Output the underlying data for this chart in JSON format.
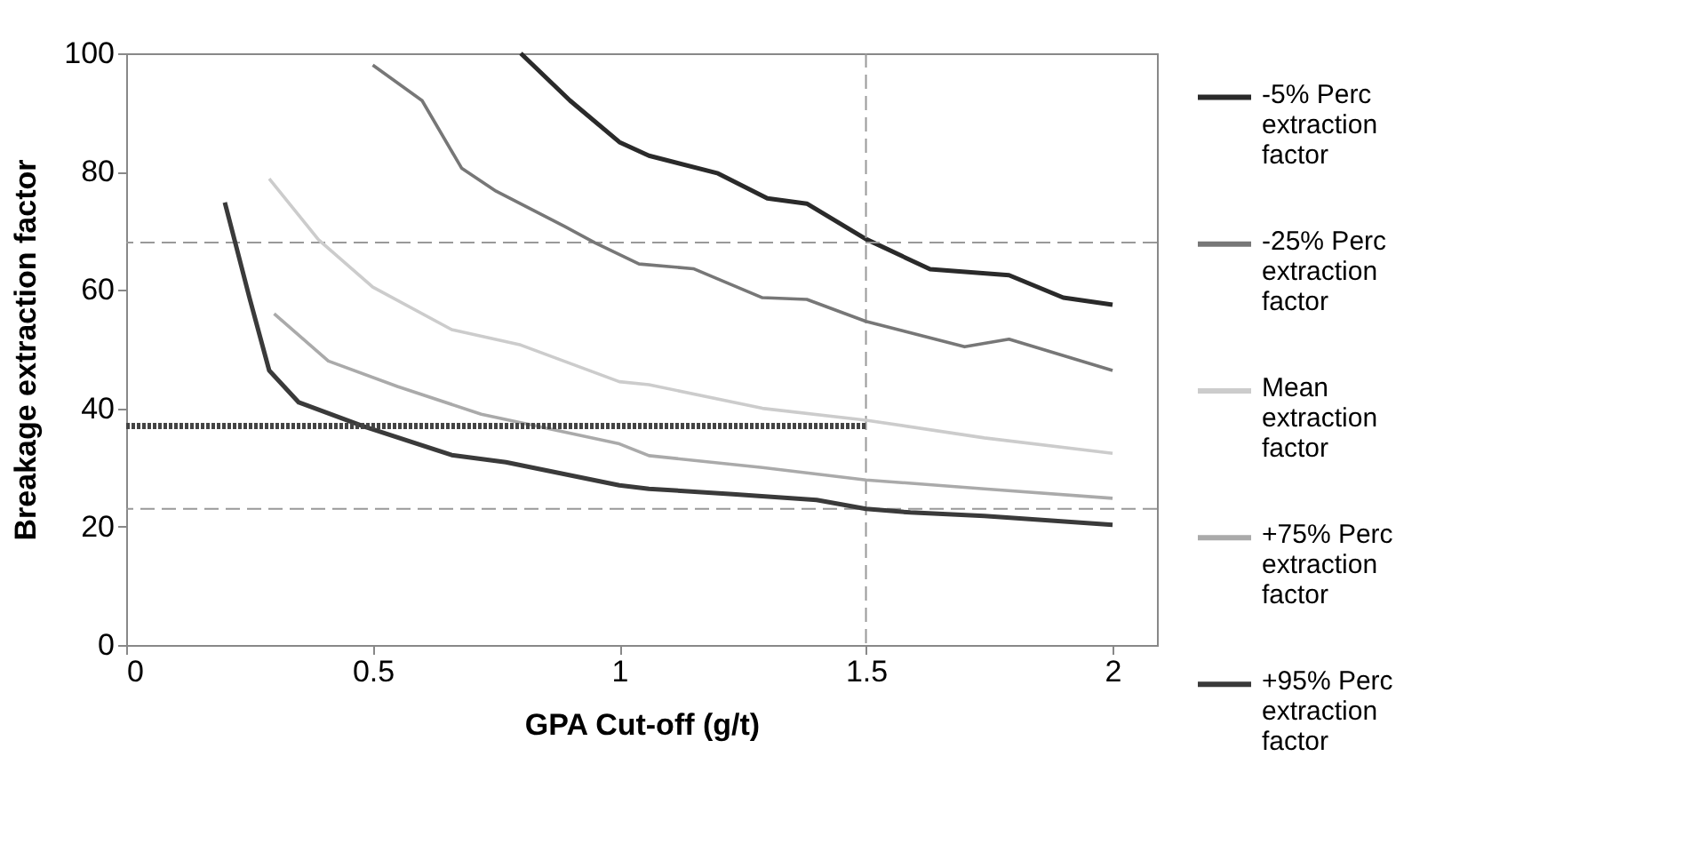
{
  "chart_data": {
    "type": "line",
    "xlabel": "GPA Cut-off (g/t)",
    "ylabel": "Breakage extraction factor",
    "xlim": [
      0,
      2.09
    ],
    "xticks": [
      0,
      0.5,
      1,
      1.5,
      2
    ],
    "ylim": [
      0,
      100
    ],
    "yticks": [
      0,
      20,
      40,
      60,
      80,
      100
    ],
    "grid": false,
    "legend": "right",
    "marker": "none",
    "series": [
      {
        "name": "-5% Perc extraction factor",
        "color": "#2a2a2a",
        "x": [
          0.8,
          0.9,
          1.0,
          1.06,
          1.2,
          1.3,
          1.38,
          1.5,
          1.63,
          1.79,
          1.9,
          2.0
        ],
        "values": [
          100,
          92,
          85,
          82.7,
          79.7,
          75.5,
          74.6,
          68.6,
          63.5,
          62.5,
          58.7,
          57.5
        ]
      },
      {
        "name": "-25% Perc extraction factor",
        "color": "#777777",
        "x": [
          0.5,
          0.6,
          0.68,
          0.75,
          0.89,
          0.95,
          1.04,
          1.15,
          1.29,
          1.38,
          1.5,
          1.7,
          1.79,
          2.0
        ],
        "values": [
          98,
          92,
          80.6,
          76.7,
          70.7,
          68,
          64.4,
          63.6,
          58.7,
          58.4,
          54.7,
          50.4,
          51.7,
          46.4
        ]
      },
      {
        "name": "Mean extraction factor",
        "color": "#cccccc",
        "x": [
          0.29,
          0.39,
          0.5,
          0.66,
          0.8,
          1.0,
          1.06,
          1.29,
          1.5,
          1.74,
          2.0
        ],
        "values": [
          78.8,
          68.5,
          60.5,
          53.3,
          50.7,
          44.5,
          44,
          40,
          38,
          35,
          32.4
        ]
      },
      {
        "name": "+75% Perc extraction factor",
        "color": "#aaaaaa",
        "x": [
          0.3,
          0.41,
          0.55,
          0.72,
          1.0,
          1.06,
          1.29,
          1.5,
          1.74,
          2.0
        ],
        "values": [
          56,
          48,
          43.7,
          39,
          34,
          32,
          30,
          27.9,
          26.4,
          24.8
        ]
      },
      {
        "name": "+95% Perc extraction factor",
        "color": "#3a3a3a",
        "x": [
          0.2,
          0.25,
          0.29,
          0.35,
          0.48,
          0.66,
          0.77,
          1.0,
          1.06,
          1.23,
          1.4,
          1.5,
          1.59,
          1.74,
          2.0
        ],
        "values": [
          74.8,
          58.7,
          46.4,
          41,
          37,
          32.1,
          30.9,
          27,
          26.4,
          25.5,
          24.5,
          23,
          22.4,
          21.8,
          20.3
        ]
      },
      {
        "color": "#444444",
        "line_style": "dotted",
        "x": [
          0,
          1.5
        ],
        "values": [
          37,
          37
        ]
      }
    ],
    "ref_lines": [
      {
        "axis": "y",
        "value": 68,
        "color": "#999999",
        "line_style": "dashed"
      },
      {
        "axis": "y",
        "value": 23,
        "color": "#999999",
        "line_style": "dashed"
      },
      {
        "axis": "x",
        "value": 1.5,
        "color": "#999999",
        "line_style": "dashed"
      }
    ]
  }
}
